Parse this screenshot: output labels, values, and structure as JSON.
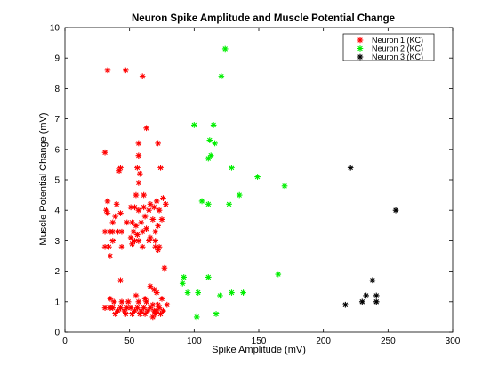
{
  "chart_data": {
    "type": "scatter",
    "title": "Neuron Spike Amplitude and Muscle Potential Change",
    "xlabel": "Spike Amplitude (mV)",
    "ylabel": "Muscle Potential Change (mV)",
    "xlim": [
      0,
      300
    ],
    "ylim": [
      0,
      10
    ],
    "xticks": [
      0,
      50,
      100,
      150,
      200,
      250,
      300
    ],
    "yticks": [
      0,
      1,
      2,
      3,
      4,
      5,
      6,
      7,
      8,
      9,
      10
    ],
    "marker": "asterisk",
    "legend_position": "top-right",
    "series": [
      {
        "name": "Neuron 1 (KC)",
        "color": "#ff0000",
        "points": [
          [
            33,
            8.6
          ],
          [
            47,
            8.6
          ],
          [
            60,
            8.4
          ],
          [
            63,
            6.7
          ],
          [
            31,
            5.9
          ],
          [
            57,
            6.2
          ],
          [
            72,
            6.2
          ],
          [
            43,
            5.4
          ],
          [
            42,
            5.3
          ],
          [
            57,
            5.8
          ],
          [
            56,
            5.4
          ],
          [
            58,
            5.2
          ],
          [
            74,
            5.4
          ],
          [
            57,
            4.9
          ],
          [
            33,
            4.3
          ],
          [
            40,
            4.2
          ],
          [
            55,
            4.5
          ],
          [
            61,
            4.5
          ],
          [
            66,
            4.2
          ],
          [
            71,
            4.3
          ],
          [
            76,
            4.4
          ],
          [
            32,
            4.0
          ],
          [
            33,
            3.9
          ],
          [
            39,
            3.8
          ],
          [
            43,
            3.9
          ],
          [
            51,
            4.1
          ],
          [
            54,
            4.1
          ],
          [
            57,
            4.0
          ],
          [
            61,
            4.1
          ],
          [
            65,
            4.0
          ],
          [
            69,
            4.1
          ],
          [
            73,
            4.0
          ],
          [
            78,
            4.2
          ],
          [
            37,
            3.6
          ],
          [
            48,
            3.6
          ],
          [
            52,
            3.6
          ],
          [
            55,
            3.5
          ],
          [
            59,
            3.6
          ],
          [
            62,
            3.8
          ],
          [
            68,
            3.7
          ],
          [
            72,
            3.5
          ],
          [
            75,
            3.7
          ],
          [
            31,
            3.3
          ],
          [
            35,
            3.3
          ],
          [
            37,
            3.3
          ],
          [
            41,
            3.3
          ],
          [
            44,
            3.3
          ],
          [
            53,
            3.3
          ],
          [
            56,
            3.2
          ],
          [
            60,
            3.3
          ],
          [
            63,
            3.4
          ],
          [
            66,
            3.1
          ],
          [
            70,
            3.3
          ],
          [
            37,
            3.0
          ],
          [
            51,
            3.1
          ],
          [
            54,
            3.0
          ],
          [
            57,
            3.0
          ],
          [
            60,
            2.8
          ],
          [
            65,
            3.0
          ],
          [
            70,
            3.0
          ],
          [
            73,
            2.8
          ],
          [
            31,
            2.8
          ],
          [
            34,
            2.8
          ],
          [
            44,
            2.8
          ],
          [
            52,
            2.9
          ],
          [
            70,
            2.8
          ],
          [
            72,
            2.7
          ],
          [
            35,
            2.5
          ],
          [
            77,
            2.1
          ],
          [
            43,
            1.7
          ],
          [
            66,
            1.5
          ],
          [
            69,
            1.4
          ],
          [
            71,
            1.3
          ],
          [
            55,
            1.2
          ],
          [
            62,
            1.1
          ],
          [
            75,
            1.1
          ],
          [
            35,
            1.1
          ],
          [
            38,
            1.0
          ],
          [
            44,
            1.0
          ],
          [
            49,
            1.0
          ],
          [
            57,
            1.0
          ],
          [
            63,
            1.0
          ],
          [
            68,
            0.9
          ],
          [
            72,
            0.9
          ],
          [
            31,
            0.8
          ],
          [
            35,
            0.8
          ],
          [
            37,
            0.8
          ],
          [
            41,
            0.7
          ],
          [
            43,
            0.8
          ],
          [
            46,
            0.7
          ],
          [
            48,
            0.8
          ],
          [
            51,
            0.8
          ],
          [
            54,
            0.7
          ],
          [
            56,
            0.8
          ],
          [
            59,
            0.7
          ],
          [
            61,
            0.8
          ],
          [
            64,
            0.7
          ],
          [
            66,
            0.8
          ],
          [
            69,
            0.7
          ],
          [
            71,
            0.7
          ],
          [
            73,
            0.8
          ],
          [
            76,
            0.7
          ],
          [
            79,
            0.9
          ],
          [
            39,
            0.6
          ],
          [
            47,
            0.6
          ],
          [
            52,
            0.6
          ],
          [
            58,
            0.6
          ],
          [
            62,
            0.6
          ],
          [
            68,
            0.5
          ],
          [
            70,
            0.6
          ],
          [
            74,
            0.6
          ]
        ]
      },
      {
        "name": "Neuron 2 (KC)",
        "color": "#00ee00",
        "points": [
          [
            124,
            9.3
          ],
          [
            121,
            8.4
          ],
          [
            100,
            6.8
          ],
          [
            115,
            6.8
          ],
          [
            112,
            6.3
          ],
          [
            116,
            6.2
          ],
          [
            113,
            5.8
          ],
          [
            111,
            5.7
          ],
          [
            129,
            5.4
          ],
          [
            149,
            5.1
          ],
          [
            170,
            4.8
          ],
          [
            135,
            4.5
          ],
          [
            106,
            4.3
          ],
          [
            111,
            4.2
          ],
          [
            127,
            4.2
          ],
          [
            92,
            1.8
          ],
          [
            111,
            1.8
          ],
          [
            165,
            1.9
          ],
          [
            91,
            1.6
          ],
          [
            95,
            1.3
          ],
          [
            103,
            1.3
          ],
          [
            120,
            1.2
          ],
          [
            129,
            1.3
          ],
          [
            138,
            1.3
          ],
          [
            102,
            0.5
          ],
          [
            117,
            0.6
          ]
        ]
      },
      {
        "name": "Neuron 3 (KC)",
        "color": "#000000",
        "points": [
          [
            221,
            5.4
          ],
          [
            256,
            4.0
          ],
          [
            238,
            1.7
          ],
          [
            233,
            1.2
          ],
          [
            241,
            1.2
          ],
          [
            230,
            1.0
          ],
          [
            241,
            1.0
          ],
          [
            217,
            0.9
          ]
        ]
      }
    ]
  }
}
